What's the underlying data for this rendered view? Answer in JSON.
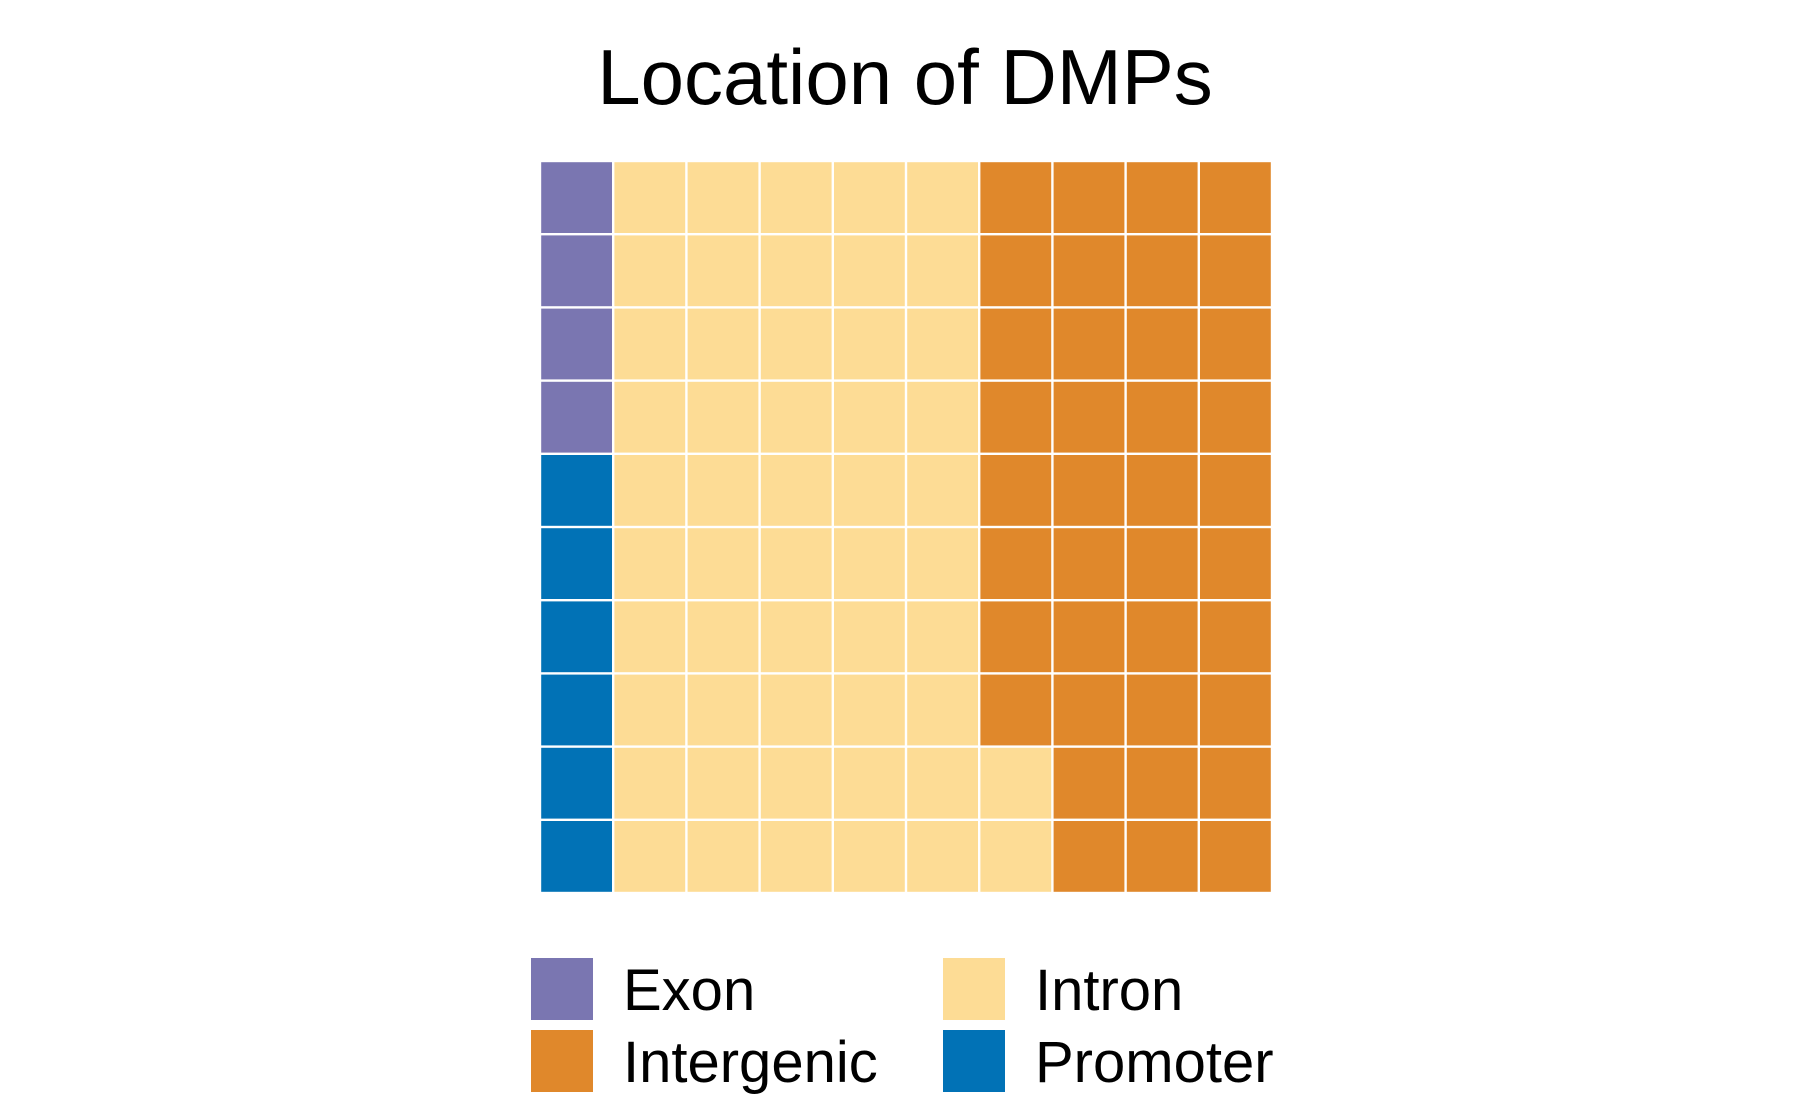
{
  "chart_data": {
    "type": "waffle",
    "title": "Location of DMPs",
    "grid": {
      "rows": 10,
      "cols": 10,
      "fill_order": "column-major, bottom-to-top"
    },
    "categories": [
      "Exon",
      "Intergenic",
      "Intron",
      "Promoter"
    ],
    "values": [
      4,
      38,
      52,
      6
    ],
    "colors": {
      "Exon": "#7A76B1",
      "Intergenic": "#E0882B",
      "Intron": "#FDDC95",
      "Promoter": "#0172B6"
    },
    "fill_sequence": [
      "Promoter",
      "Exon",
      "Intron",
      "Intergenic"
    ],
    "legend": {
      "position": "bottom",
      "items": [
        {
          "label": "Exon",
          "color": "#7A76B1"
        },
        {
          "label": "Intron",
          "color": "#FDDC95"
        },
        {
          "label": "Intergenic",
          "color": "#E0882B"
        },
        {
          "label": "Promoter",
          "color": "#0172B6"
        }
      ]
    }
  }
}
